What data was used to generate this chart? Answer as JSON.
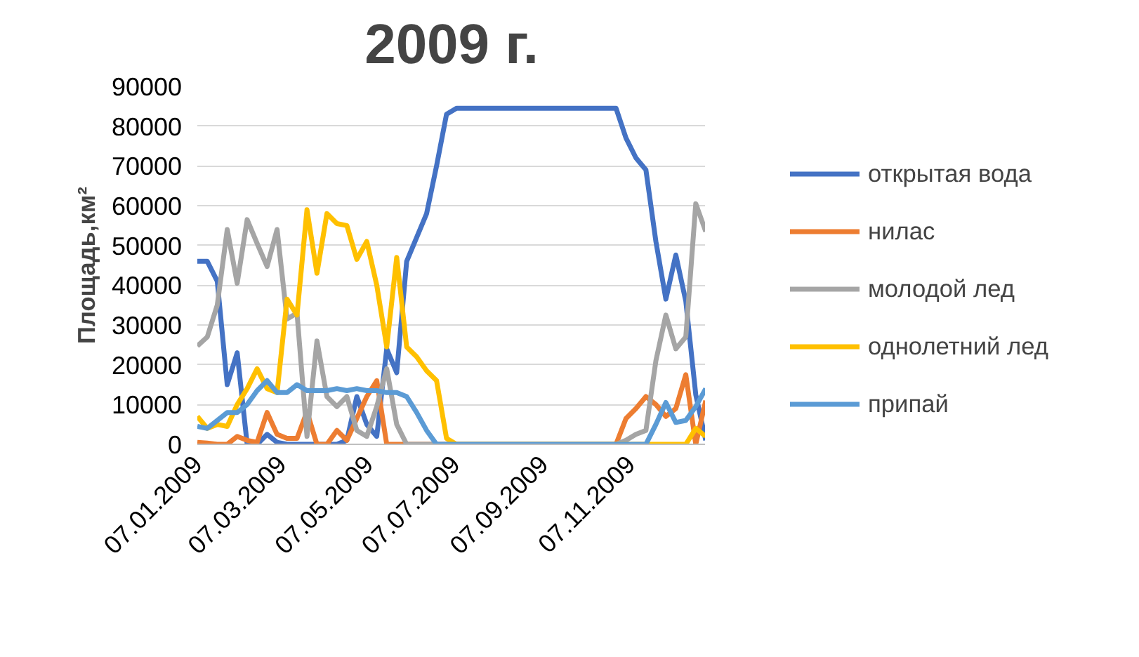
{
  "chart_data": {
    "type": "line",
    "title": "2009 г.",
    "ylabel": "Площадь,км²",
    "x": [
      "2009-01-07",
      "2009-01-14",
      "2009-01-21",
      "2009-01-28",
      "2009-02-04",
      "2009-02-11",
      "2009-02-18",
      "2009-02-25",
      "2009-03-04",
      "2009-03-11",
      "2009-03-18",
      "2009-03-25",
      "2009-04-01",
      "2009-04-08",
      "2009-04-15",
      "2009-04-22",
      "2009-04-29",
      "2009-05-06",
      "2009-05-13",
      "2009-05-20",
      "2009-05-27",
      "2009-06-03",
      "2009-06-10",
      "2009-06-17",
      "2009-06-24",
      "2009-07-01",
      "2009-07-08",
      "2009-07-15",
      "2009-07-22",
      "2009-07-29",
      "2009-08-05",
      "2009-08-12",
      "2009-08-19",
      "2009-08-26",
      "2009-09-02",
      "2009-09-09",
      "2009-09-16",
      "2009-09-23",
      "2009-09-30",
      "2009-10-07",
      "2009-10-14",
      "2009-10-21",
      "2009-10-28",
      "2009-11-04",
      "2009-11-11",
      "2009-11-18",
      "2009-11-25",
      "2009-12-02",
      "2009-12-09",
      "2009-12-16",
      "2009-12-23",
      "2009-12-30"
    ],
    "series": [
      {
        "name": "открытая вода",
        "color": "#4472c4",
        "values": [
          46000,
          46000,
          41000,
          15000,
          23000,
          0,
          0,
          2500,
          500,
          0,
          0,
          0,
          0,
          0,
          0,
          1000,
          12000,
          5000,
          2000,
          24000,
          18000,
          46000,
          52000,
          58000,
          70000,
          83000,
          84500,
          84500,
          84500,
          84500,
          84500,
          84500,
          84500,
          84500,
          84500,
          84500,
          84500,
          84500,
          84500,
          84500,
          84500,
          84500,
          84500,
          77000,
          72000,
          69000,
          51000,
          36500,
          47600,
          36000,
          12500,
          1000
        ]
      },
      {
        "name": "нилас",
        "color": "#ed7d31",
        "values": [
          500,
          300,
          0,
          0,
          2000,
          1000,
          500,
          8000,
          2500,
          1500,
          1500,
          8200,
          0,
          0,
          3500,
          1000,
          6500,
          12000,
          16000,
          0,
          0,
          0,
          0,
          0,
          0,
          0,
          0,
          0,
          0,
          0,
          0,
          0,
          0,
          0,
          0,
          0,
          0,
          0,
          0,
          0,
          0,
          0,
          0,
          6500,
          9000,
          12000,
          10000,
          7000,
          9000,
          17500,
          0,
          11000
        ]
      },
      {
        "name": "молодой лед",
        "color": "#a5a5a5",
        "values": [
          24700,
          27000,
          35000,
          54000,
          40500,
          56500,
          50500,
          44700,
          54000,
          31500,
          33000,
          2000,
          26000,
          12000,
          9500,
          12000,
          3500,
          2000,
          9500,
          19000,
          5000,
          0,
          0,
          0,
          0,
          0,
          0,
          0,
          0,
          0,
          0,
          0,
          0,
          0,
          0,
          0,
          0,
          0,
          0,
          0,
          0,
          0,
          0,
          1000,
          2500,
          3500,
          21000,
          32500,
          24000,
          27000,
          60500,
          53500
        ]
      },
      {
        "name": "однолетний лед",
        "color": "#ffc000",
        "values": [
          7000,
          4000,
          5000,
          4500,
          10000,
          14000,
          19000,
          14000,
          13000,
          36500,
          32500,
          59000,
          43000,
          58000,
          55500,
          55000,
          46500,
          51000,
          40000,
          24500,
          47000,
          24500,
          22000,
          18500,
          16000,
          1500,
          0,
          0,
          0,
          0,
          0,
          0,
          0,
          0,
          0,
          0,
          0,
          0,
          0,
          0,
          0,
          0,
          0,
          0,
          0,
          0,
          0,
          0,
          0,
          0,
          4000,
          2000
        ]
      },
      {
        "name": "припай",
        "color": "#5b9bd5",
        "values": [
          4500,
          4000,
          6000,
          8000,
          8000,
          10000,
          13500,
          16000,
          13000,
          13000,
          15000,
          13500,
          13500,
          13500,
          14000,
          13500,
          14000,
          13500,
          13500,
          13000,
          13000,
          12000,
          8000,
          3500,
          0,
          0,
          0,
          0,
          0,
          0,
          0,
          0,
          0,
          0,
          0,
          0,
          0,
          0,
          0,
          0,
          0,
          0,
          0,
          0,
          0,
          0,
          5000,
          10500,
          5500,
          6000,
          9500,
          14000
        ]
      }
    ],
    "xlim": [
      "2009-01-07",
      "2009-12-30"
    ],
    "xticks": [
      {
        "value": "2009-01-07",
        "label": "07.01.2009"
      },
      {
        "value": "2009-03-07",
        "label": "07.03.2009"
      },
      {
        "value": "2009-05-07",
        "label": "07.05.2009"
      },
      {
        "value": "2009-07-07",
        "label": "07.07.2009"
      },
      {
        "value": "2009-09-07",
        "label": "07.09.2009"
      },
      {
        "value": "2009-11-07",
        "label": "07.11.2009"
      }
    ],
    "ylim": [
      0,
      90000
    ],
    "yticks": [
      0,
      10000,
      20000,
      30000,
      40000,
      50000,
      60000,
      70000,
      80000,
      90000
    ],
    "grid": "y",
    "legend": "right",
    "marker": "none",
    "line_style": "solid"
  }
}
